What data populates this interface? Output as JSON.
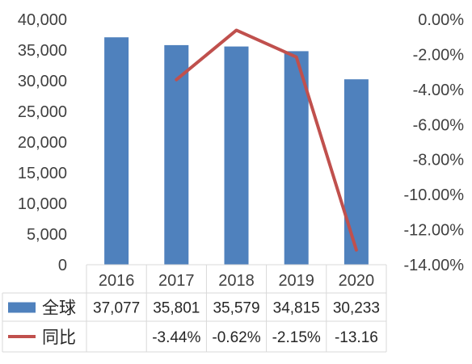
{
  "chart_data": {
    "type": "bar",
    "title": "",
    "xlabel": "",
    "ylabel": "",
    "categories": [
      "2016",
      "2017",
      "2018",
      "2019",
      "2020"
    ],
    "ylim": [
      0,
      40000
    ],
    "y_ticks": [
      "0",
      "5,000",
      "10,000",
      "15,000",
      "20,000",
      "25,000",
      "30,000",
      "35,000",
      "40,000"
    ],
    "y2lim": [
      -14,
      0
    ],
    "y2_ticks": [
      "0.00%",
      "-2.00%",
      "-4.00%",
      "-6.00%",
      "-8.00%",
      "-10.00%",
      "-12.00%",
      "-14.00%"
    ],
    "grid": false,
    "legend": "data-table",
    "series": [
      {
        "name": "全球",
        "type": "bar",
        "axis": "left",
        "color": "#4f81bd",
        "values": [
          37077,
          35801,
          35579,
          34815,
          30233
        ],
        "labels": [
          "37,077",
          "35,801",
          "35,579",
          "34,815",
          "30,233"
        ]
      },
      {
        "name": "同比",
        "type": "line",
        "axis": "right",
        "color": "#c0504d",
        "values": [
          null,
          -3.44,
          -0.62,
          -2.15,
          -13.16
        ],
        "labels": [
          "",
          "-3.44%",
          "-0.62%",
          "-2.15%",
          "-13.16"
        ]
      }
    ]
  }
}
